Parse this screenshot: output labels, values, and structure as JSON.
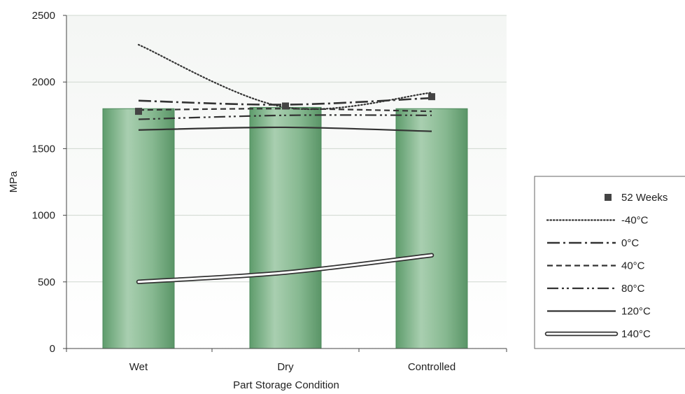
{
  "chart_data": {
    "type": "bar",
    "title": "",
    "xlabel": "Part Storage Condition",
    "ylabel": "MPa",
    "categories": [
      "Wet",
      "Dry",
      "Controlled"
    ],
    "ylim": [
      0,
      2500
    ],
    "yticks": [
      "0",
      "500",
      "1000",
      "1500",
      "2000",
      "2500"
    ],
    "grid": true,
    "legend_position": "right",
    "bar_series": {
      "name": "52 Weeks",
      "values": [
        1800,
        1810,
        1800
      ],
      "color": "#8dbb95"
    },
    "marker_series": {
      "name": "52 Weeks",
      "values": [
        1780,
        1820,
        1890
      ]
    },
    "series": [
      {
        "name": "-40°C",
        "style": "dotted",
        "values": [
          2280,
          1810,
          1920
        ]
      },
      {
        "name": "0°C",
        "style": "dash-dot",
        "values": [
          1860,
          1830,
          1880
        ]
      },
      {
        "name": "40°C",
        "style": "dashed",
        "values": [
          1790,
          1800,
          1780
        ]
      },
      {
        "name": "80°C",
        "style": "dash-dot-dot",
        "values": [
          1720,
          1750,
          1750
        ]
      },
      {
        "name": "120°C",
        "style": "solid",
        "values": [
          1640,
          1660,
          1630
        ]
      },
      {
        "name": "140°C",
        "style": "double",
        "values": [
          500,
          570,
          700
        ]
      }
    ]
  }
}
